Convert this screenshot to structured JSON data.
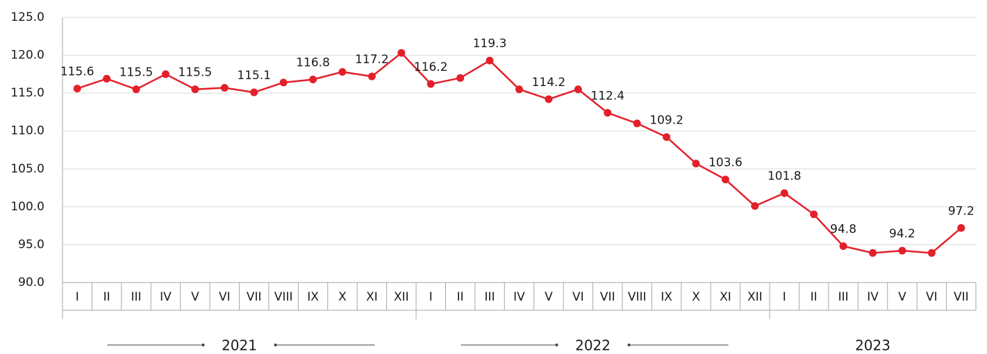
{
  "chart_data": {
    "type": "line",
    "groups": [
      {
        "label": "2021",
        "categories": [
          "I",
          "II",
          "III",
          "IV",
          "V",
          "VI",
          "VII",
          "VIII",
          "IX",
          "X",
          "XI",
          "XII"
        ]
      },
      {
        "label": "2022",
        "categories": [
          "I",
          "II",
          "III",
          "IV",
          "V",
          "VI",
          "VII",
          "VIII",
          "IX",
          "X",
          "XI",
          "XII"
        ]
      },
      {
        "label": "2023",
        "categories": [
          "I",
          "II",
          "III",
          "IV",
          "V",
          "VI",
          "VII"
        ]
      }
    ],
    "values": [
      115.6,
      116.9,
      115.5,
      117.5,
      115.5,
      115.7,
      115.1,
      116.4,
      116.8,
      117.8,
      117.2,
      120.3,
      116.2,
      117.0,
      119.3,
      115.5,
      114.2,
      115.5,
      112.4,
      111.0,
      109.2,
      105.7,
      103.6,
      100.1,
      101.8,
      99.0,
      94.8,
      93.9,
      94.2,
      93.9,
      97.2
    ],
    "value_labels": [
      "115.6",
      null,
      "115.5",
      null,
      "115.5",
      null,
      "115.1",
      null,
      "116.8",
      null,
      "117.2",
      null,
      "116.2",
      null,
      "119.3",
      null,
      "114.2",
      null,
      "112.4",
      null,
      "109.2",
      null,
      "103.6",
      null,
      "101.8",
      null,
      "94.8",
      null,
      "94.2",
      null,
      "97.2"
    ],
    "color": "#e3202a",
    "ylim": [
      90,
      125
    ],
    "yticks": [
      {
        "value": 90,
        "label": "90.0"
      },
      {
        "value": 95,
        "label": "95.0"
      },
      {
        "value": 100,
        "label": "100.0"
      },
      {
        "value": 105,
        "label": "105.0"
      },
      {
        "value": 110,
        "label": "110.0"
      },
      {
        "value": 115,
        "label": "115.0"
      },
      {
        "value": 120,
        "label": "120.0"
      },
      {
        "value": 125,
        "label": "125.0"
      }
    ],
    "grid": true
  }
}
